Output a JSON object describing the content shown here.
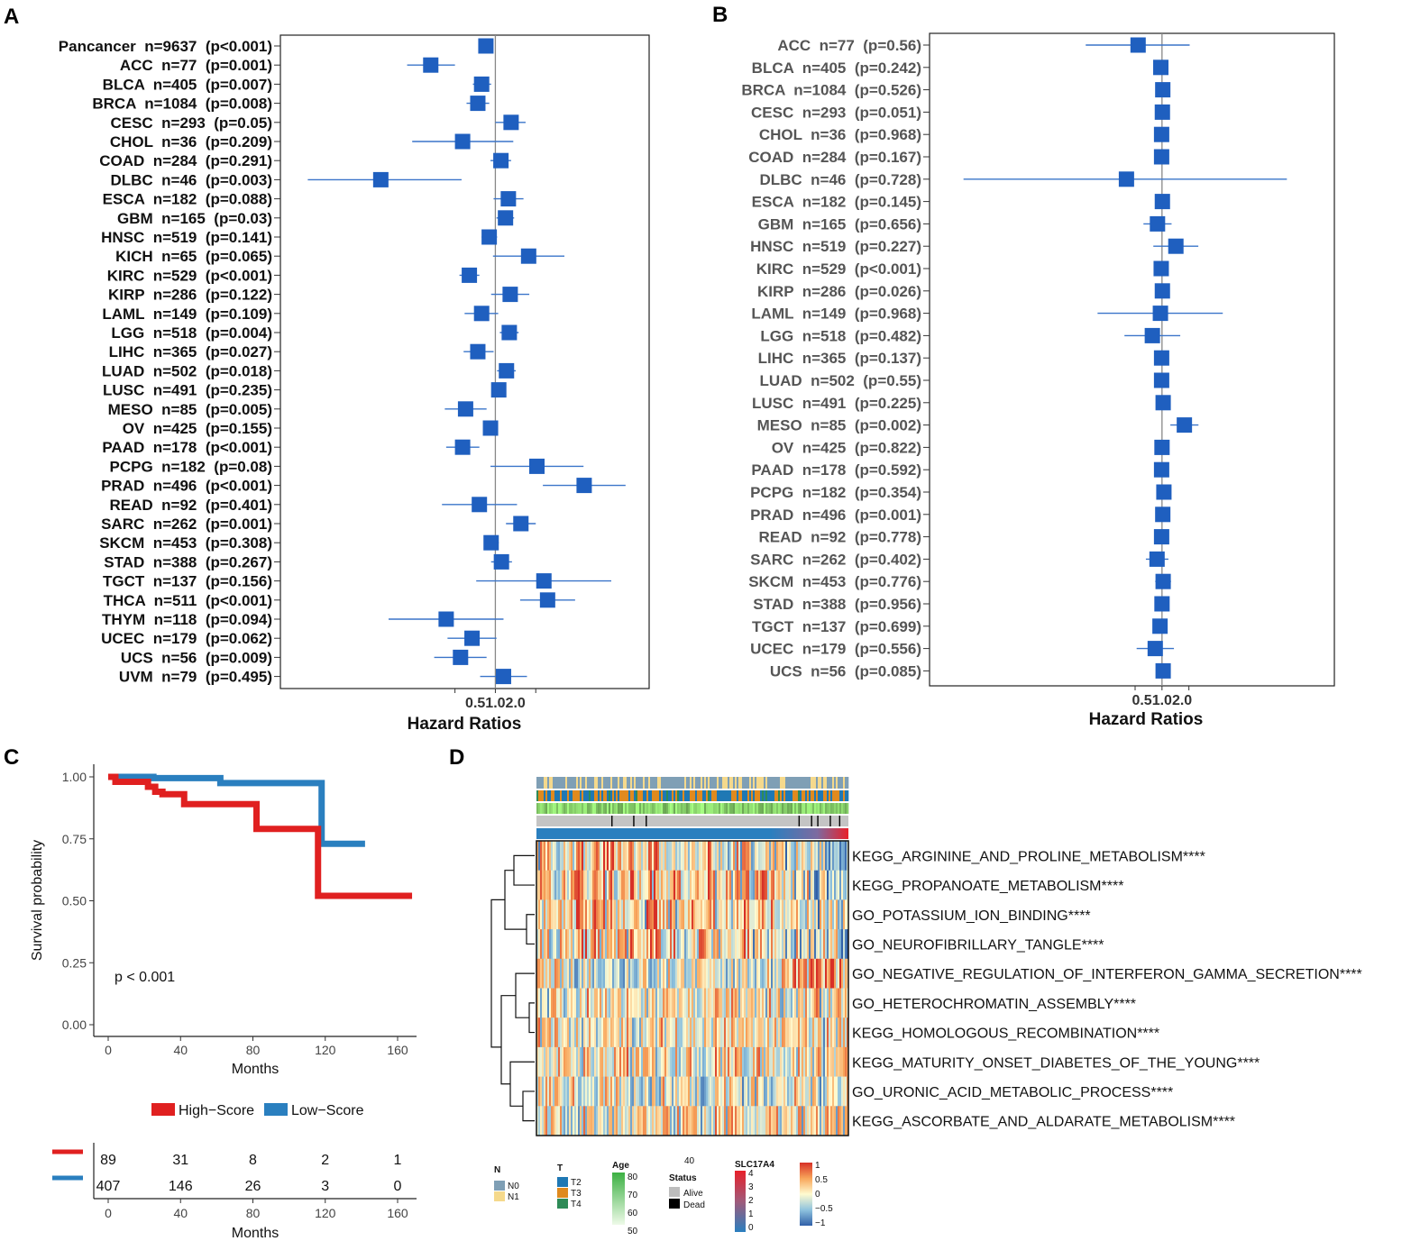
{
  "panels": {
    "A": "A",
    "B": "B",
    "C": "C",
    "D": "D"
  },
  "colors": {
    "box": "#1f5fbf",
    "line": "#3a74c9",
    "high": "#e02020",
    "low": "#2a7fbf"
  },
  "chart_data": [
    {
      "type": "forest",
      "panel": "A",
      "xlabel": "Hazard Ratios",
      "ticks": [
        "0.5",
        "1.0",
        "2.0"
      ],
      "reference_hr": 1.0,
      "rows": [
        {
          "label": "Pancancer  n=9637  (p<0.001)",
          "hr": 0.85,
          "lo": 0.81,
          "hi": 0.9
        },
        {
          "label": "ACC  n=77  (p=0.001)",
          "hr": 0.33,
          "lo": 0.22,
          "hi": 0.5
        },
        {
          "label": "BLCA  n=405  (p=0.007)",
          "hr": 0.79,
          "lo": 0.68,
          "hi": 0.93
        },
        {
          "label": "BRCA  n=1084  (p=0.008)",
          "hr": 0.74,
          "lo": 0.61,
          "hi": 0.9
        },
        {
          "label": "CESC  n=293  (p=0.05)",
          "hr": 1.31,
          "lo": 1.0,
          "hi": 1.68
        },
        {
          "label": "CHOL  n=36  (p=0.209)",
          "hr": 0.57,
          "lo": 0.24,
          "hi": 1.36
        },
        {
          "label": "COAD  n=284  (p=0.291)",
          "hr": 1.1,
          "lo": 0.92,
          "hi": 1.31
        },
        {
          "label": "DLBC  n=46  (p=0.003)",
          "hr": 0.14,
          "lo": 0.04,
          "hi": 0.56
        },
        {
          "label": "ESCA  n=182  (p=0.088)",
          "hr": 1.25,
          "lo": 0.97,
          "hi": 1.62
        },
        {
          "label": "GBM  n=165  (p=0.03)",
          "hr": 1.19,
          "lo": 1.02,
          "hi": 1.38
        },
        {
          "label": "HNSC  n=519  (p=0.141)",
          "hr": 0.9,
          "lo": 0.79,
          "hi": 1.03
        },
        {
          "label": "KICH  n=65  (p=0.065)",
          "hr": 1.77,
          "lo": 0.96,
          "hi": 3.27
        },
        {
          "label": "KIRC  n=529  (p<0.001)",
          "hr": 0.64,
          "lo": 0.54,
          "hi": 0.76
        },
        {
          "label": "KIRP  n=286  (p=0.122)",
          "hr": 1.29,
          "lo": 0.93,
          "hi": 1.79
        },
        {
          "label": "LAML  n=149  (p=0.109)",
          "hr": 0.79,
          "lo": 0.59,
          "hi": 1.05
        },
        {
          "label": "LGG  n=518  (p=0.004)",
          "hr": 1.27,
          "lo": 1.08,
          "hi": 1.49
        },
        {
          "label": "LIHC  n=365  (p=0.027)",
          "hr": 0.74,
          "lo": 0.58,
          "hi": 0.97
        },
        {
          "label": "LUAD  n=502  (p=0.018)",
          "hr": 1.21,
          "lo": 1.03,
          "hi": 1.42
        },
        {
          "label": "LUSC  n=491  (p=0.235)",
          "hr": 1.06,
          "lo": 0.96,
          "hi": 1.17
        },
        {
          "label": "MESO  n=85  (p=0.005)",
          "hr": 0.6,
          "lo": 0.42,
          "hi": 0.86
        },
        {
          "label": "OV  n=425  (p=0.155)",
          "hr": 0.92,
          "lo": 0.82,
          "hi": 1.03
        },
        {
          "label": "PAAD  n=178  (p<0.001)",
          "hr": 0.57,
          "lo": 0.43,
          "hi": 0.76
        },
        {
          "label": "PCPG  n=182  (p=0.08)",
          "hr": 2.04,
          "lo": 0.92,
          "hi": 4.54
        },
        {
          "label": "PRAD  n=496  (p<0.001)",
          "hr": 4.59,
          "lo": 2.26,
          "hi": 9.34
        },
        {
          "label": "READ  n=92  (p=0.401)",
          "hr": 0.76,
          "lo": 0.4,
          "hi": 1.45
        },
        {
          "label": "SARC  n=262  (p=0.001)",
          "hr": 1.55,
          "lo": 1.2,
          "hi": 2.0
        },
        {
          "label": "SKCM  n=453  (p=0.308)",
          "hr": 0.93,
          "lo": 0.82,
          "hi": 1.06
        },
        {
          "label": "STAD  n=388  (p=0.267)",
          "hr": 1.11,
          "lo": 0.93,
          "hi": 1.33
        },
        {
          "label": "TGCT  n=137  (p=0.156)",
          "hr": 2.3,
          "lo": 0.72,
          "hi": 7.31
        },
        {
          "label": "THCA  n=511  (p<0.001)",
          "hr": 2.45,
          "lo": 1.53,
          "hi": 3.93
        },
        {
          "label": "THYM  n=118  (p=0.094)",
          "hr": 0.43,
          "lo": 0.16,
          "hi": 1.15
        },
        {
          "label": "UCEC  n=179  (p=0.062)",
          "hr": 0.67,
          "lo": 0.44,
          "hi": 1.02
        },
        {
          "label": "UCS  n=56  (p=0.009)",
          "hr": 0.55,
          "lo": 0.35,
          "hi": 0.86
        },
        {
          "label": "UVM  n=79  (p=0.495)",
          "hr": 1.15,
          "lo": 0.77,
          "hi": 1.72
        }
      ]
    },
    {
      "type": "forest",
      "panel": "B",
      "xlabel": "Hazard Ratios",
      "ticks": [
        "0.5",
        "1.0",
        "2.0"
      ],
      "reference_hr": 1.0,
      "rows": [
        {
          "label": "ACC  n=77  (p=0.56)",
          "hr": 0.54,
          "lo": 0.14,
          "hi": 2.04
        },
        {
          "label": "BLCA  n=405  (p=0.242)",
          "hr": 0.97,
          "lo": 0.93,
          "hi": 1.02
        },
        {
          "label": "BRCA  n=1084  (p=0.526)",
          "hr": 1.02,
          "lo": 0.96,
          "hi": 1.08
        },
        {
          "label": "CESC  n=293  (p=0.051)",
          "hr": 1.01,
          "lo": 0.99,
          "hi": 1.03
        },
        {
          "label": "CHOL  n=36  (p=0.968)",
          "hr": 0.99,
          "lo": 0.94,
          "hi": 1.05
        },
        {
          "label": "COAD  n=284  (p=0.167)",
          "hr": 0.99,
          "lo": 0.95,
          "hi": 1.01
        },
        {
          "label": "DLBC  n=46  (p=0.728)",
          "hr": 0.4,
          "lo": 0.006,
          "hi": 25.0
        },
        {
          "label": "ESCA  n=182  (p=0.145)",
          "hr": 1.01,
          "lo": 0.98,
          "hi": 1.05
        },
        {
          "label": "GBM  n=165  (p=0.656)",
          "hr": 0.89,
          "lo": 0.62,
          "hi": 1.28
        },
        {
          "label": "HNSC  n=519  (p=0.227)",
          "hr": 1.43,
          "lo": 0.8,
          "hi": 2.55
        },
        {
          "label": "KIRC  n=529  (p<0.001)",
          "hr": 0.98,
          "lo": 0.97,
          "hi": 0.99
        },
        {
          "label": "KIRP  n=286  (p=0.026)",
          "hr": 1.01,
          "lo": 1.0,
          "hi": 1.02
        },
        {
          "label": "LAML  n=149  (p=0.968)",
          "hr": 0.96,
          "lo": 0.19,
          "hi": 4.79
        },
        {
          "label": "LGG  n=518  (p=0.482)",
          "hr": 0.78,
          "lo": 0.38,
          "hi": 1.6
        },
        {
          "label": "LIHC  n=365  (p=0.137)",
          "hr": 0.99,
          "lo": 0.97,
          "hi": 1.0
        },
        {
          "label": "LUAD  n=502  (p=0.55)",
          "hr": 0.99,
          "lo": 0.96,
          "hi": 1.02
        },
        {
          "label": "LUSC  n=491  (p=0.225)",
          "hr": 1.03,
          "lo": 0.98,
          "hi": 1.08
        },
        {
          "label": "MESO  n=85  (p=0.002)",
          "hr": 1.78,
          "lo": 1.24,
          "hi": 2.56
        },
        {
          "label": "OV  n=425  (p=0.822)",
          "hr": 1.0,
          "lo": 0.98,
          "hi": 1.02
        },
        {
          "label": "PAAD  n=178  (p=0.592)",
          "hr": 0.99,
          "lo": 0.96,
          "hi": 1.02
        },
        {
          "label": "PCPG  n=182  (p=0.354)",
          "hr": 1.05,
          "lo": 0.95,
          "hi": 1.16
        },
        {
          "label": "PRAD  n=496  (p=0.001)",
          "hr": 1.02,
          "lo": 1.01,
          "hi": 1.03
        },
        {
          "label": "READ  n=92  (p=0.778)",
          "hr": 0.99,
          "lo": 0.93,
          "hi": 1.05
        },
        {
          "label": "SARC  n=262  (p=0.402)",
          "hr": 0.88,
          "lo": 0.66,
          "hi": 1.18
        },
        {
          "label": "SKCM  n=453  (p=0.776)",
          "hr": 1.03,
          "lo": 0.84,
          "hi": 1.26
        },
        {
          "label": "STAD  n=388  (p=0.956)",
          "hr": 1.0,
          "lo": 0.96,
          "hi": 1.04
        },
        {
          "label": "TGCT  n=137  (p=0.699)",
          "hr": 0.95,
          "lo": 0.86,
          "hi": 1.06
        },
        {
          "label": "UCEC  n=179  (p=0.556)",
          "hr": 0.84,
          "lo": 0.52,
          "hi": 1.36
        },
        {
          "label": "UCS  n=56  (p=0.085)",
          "hr": 1.03,
          "lo": 0.99,
          "hi": 1.06
        }
      ]
    },
    {
      "type": "line",
      "panel": "C",
      "title": "",
      "ylabel": "Survival probability",
      "xlabel": "Months",
      "xlim": [
        0,
        168
      ],
      "ylim": [
        0,
        1
      ],
      "xticks": [
        "0",
        "40",
        "80",
        "120",
        "160"
      ],
      "yticks": [
        "0.00",
        "0.25",
        "0.50",
        "0.75",
        "1.00"
      ],
      "pvalue": "p < 0.001",
      "legend": [
        "High−Score",
        "Low−Score"
      ],
      "series": [
        {
          "name": "High-Score",
          "steps": [
            [
              0,
              1.0
            ],
            [
              4,
              0.98
            ],
            [
              22,
              0.96
            ],
            [
              26,
              0.94
            ],
            [
              30,
              0.93
            ],
            [
              42,
              0.89
            ],
            [
              82,
              0.79
            ],
            [
              116,
              0.52
            ],
            [
              168,
              0.52
            ]
          ]
        },
        {
          "name": "Low-Score",
          "steps": [
            [
              0,
              1.0
            ],
            [
              25,
              0.995
            ],
            [
              62,
              0.975
            ],
            [
              118,
              0.73
            ],
            [
              142,
              0.73
            ]
          ]
        }
      ],
      "risk_table": {
        "xlabel": "Months",
        "times": [
          0,
          40,
          80,
          120,
          160
        ],
        "high": [
          "89",
          "31",
          "8",
          "2",
          "1"
        ],
        "low": [
          "407",
          "146",
          "26",
          "3",
          "0"
        ]
      }
    },
    {
      "type": "heatmap",
      "panel": "D",
      "pathways": [
        "KEGG_ARGININE_AND_PROLINE_METABOLISM****",
        "KEGG_PROPANOATE_METABOLISM****",
        "GO_POTASSIUM_ION_BINDING****",
        "GO_NEUROFIBRILLARY_TANGLE****",
        "GO_NEGATIVE_REGULATION_OF_INTERFERON_GAMMA_SECRETION****",
        "GO_HETEROCHROMATIN_ASSEMBLY****",
        "KEGG_HOMOLOGOUS_RECOMBINATION****",
        "KEGG_MATURITY_ONSET_DIABETES_OF_THE_YOUNG****",
        "GO_URONIC_ACID_METABOLIC_PROCESS****",
        "KEGG_ASCORBATE_AND_ALDARATE_METABOLISM****"
      ],
      "color_scale": {
        "min": -1,
        "max": 1,
        "ticks": [
          "1",
          "0.5",
          "0",
          "−0.5",
          "−1"
        ]
      },
      "annotations": {
        "N": {
          "title": "N",
          "levels": [
            "N0",
            "N1"
          ],
          "colors": [
            "#7f9fb5",
            "#f5d98c"
          ]
        },
        "T": {
          "title": "T",
          "levels": [
            "T2",
            "T3",
            "T4"
          ],
          "colors": [
            "#1f78b4",
            "#e08a1e",
            "#2e8b57"
          ]
        },
        "Age": {
          "title": "Age",
          "ticks": [
            "80",
            "70",
            "60",
            "50"
          ],
          "extra": "40"
        },
        "Status": {
          "title": "Status",
          "levels": [
            "Alive",
            "Dead"
          ],
          "colors": [
            "#bdbdbd",
            "#000000"
          ]
        },
        "SLC17A4": {
          "title": "SLC17A4",
          "ticks": [
            "4",
            "3",
            "2",
            "1",
            "0"
          ]
        }
      }
    }
  ]
}
